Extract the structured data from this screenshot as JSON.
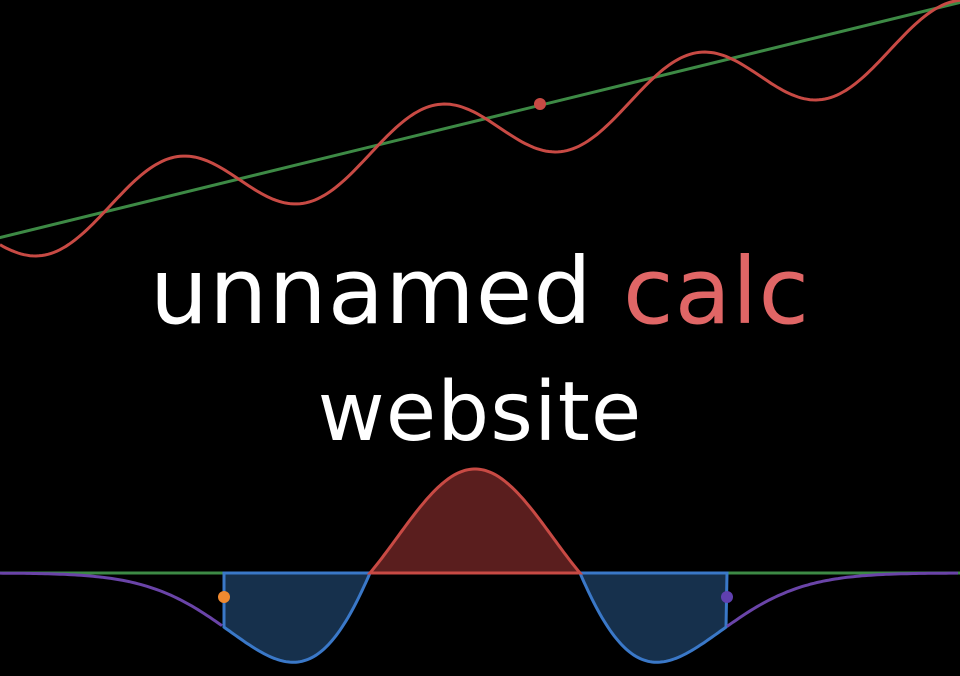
{
  "title": {
    "word1": "unnamed",
    "word2": "calc",
    "word3": "website"
  },
  "colors": {
    "background": "#000000",
    "text": "#ffffff",
    "accent_text": "#e06666",
    "red_curve": "#c84a44",
    "green_line": "#3d8a45",
    "blue_curve": "#3a78c8",
    "blue_fill": "#16304c",
    "red_fill": "#5a1e1e",
    "purple_curve": "#6a44a8",
    "orange_point": "#f08a30",
    "purple_point": "#6040b0"
  },
  "graphics": {
    "top": [
      "tangent-line",
      "wave-curve",
      "tangent-point"
    ],
    "bottom": [
      "bell-curve",
      "negative-area-left",
      "negative-area-right",
      "positive-area",
      "inflection-point-left",
      "inflection-point-right"
    ]
  }
}
